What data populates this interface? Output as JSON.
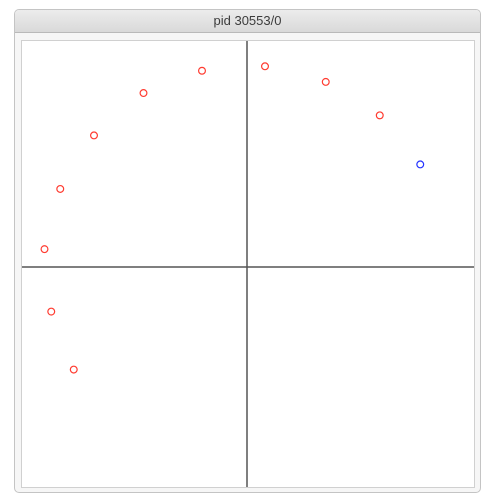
{
  "window": {
    "title": "pid 30553/0"
  },
  "colors": {
    "axis": "#555555",
    "point_default": "#ff3b30",
    "point_highlight": "#2433ff"
  },
  "chart_data": {
    "type": "scatter",
    "xlim": [
      -1,
      1
    ],
    "ylim": [
      -1,
      1
    ],
    "grid": false,
    "points": [
      {
        "x": -0.9,
        "y": 0.08,
        "color": "red"
      },
      {
        "x": -0.83,
        "y": 0.35,
        "color": "red"
      },
      {
        "x": -0.68,
        "y": 0.59,
        "color": "red"
      },
      {
        "x": -0.46,
        "y": 0.78,
        "color": "red"
      },
      {
        "x": -0.2,
        "y": 0.88,
        "color": "red"
      },
      {
        "x": 0.08,
        "y": 0.9,
        "color": "red"
      },
      {
        "x": 0.35,
        "y": 0.83,
        "color": "red"
      },
      {
        "x": 0.59,
        "y": 0.68,
        "color": "red"
      },
      {
        "x": 0.77,
        "y": 0.46,
        "color": "blue"
      },
      {
        "x": -0.87,
        "y": -0.2,
        "color": "red"
      },
      {
        "x": -0.77,
        "y": -0.46,
        "color": "red"
      }
    ]
  }
}
